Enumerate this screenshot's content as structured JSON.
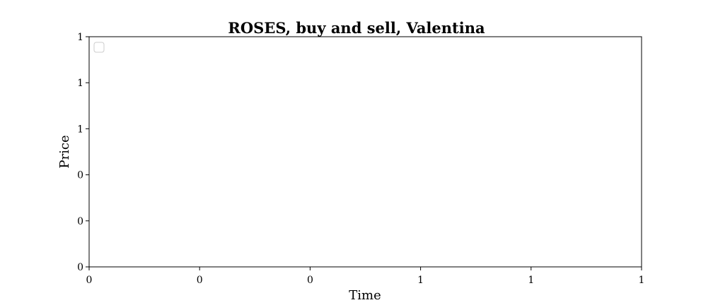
{
  "chart_data": {
    "type": "line",
    "title": "ROSES, buy and sell, Valentina",
    "xlabel": "Time",
    "ylabel": "Price",
    "x_tick_labels": [
      "0",
      "0",
      "0",
      "1",
      "1",
      "1"
    ],
    "y_tick_labels": [
      "0",
      "0",
      "0",
      "1",
      "1",
      "1"
    ],
    "series": [],
    "legend": {
      "position": "top-left",
      "entries": []
    },
    "grid": false
  }
}
